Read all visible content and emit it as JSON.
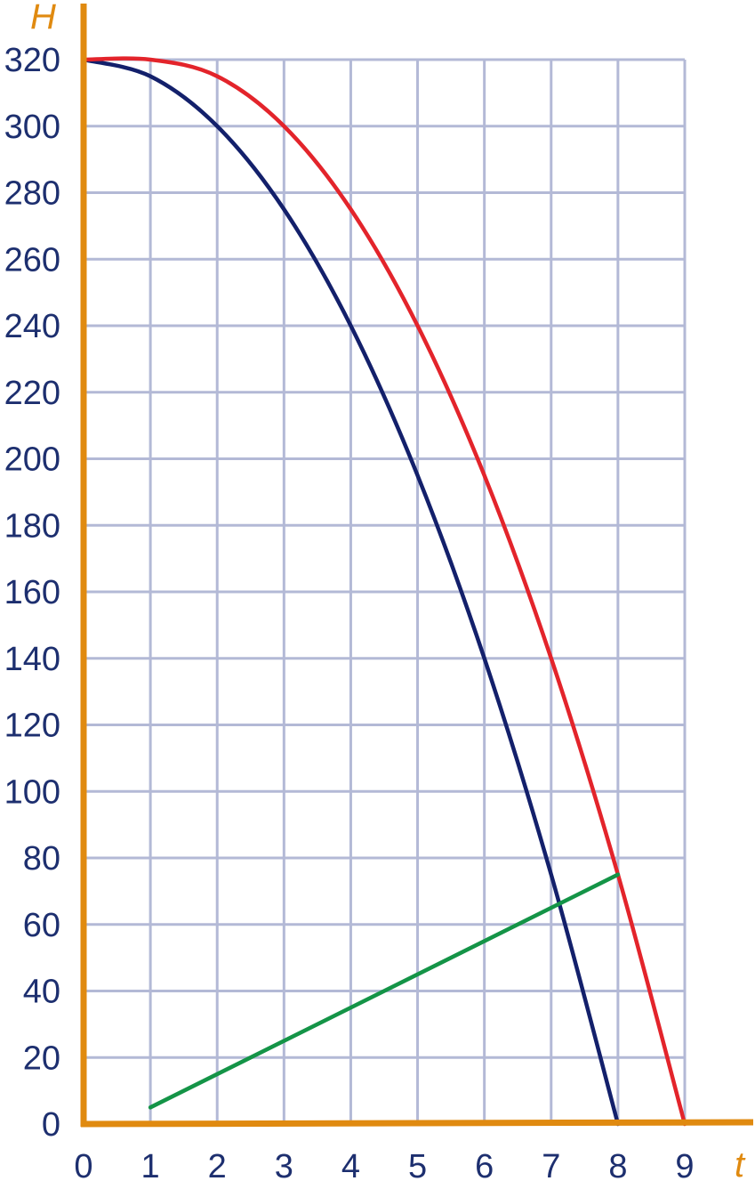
{
  "chart_data": {
    "type": "line",
    "xlabel": "t",
    "ylabel": "H",
    "xlim": [
      0,
      9
    ],
    "ylim": [
      0,
      320
    ],
    "x_ticks": [
      0,
      1,
      2,
      3,
      4,
      5,
      6,
      7,
      8,
      9
    ],
    "y_ticks": [
      0,
      20,
      40,
      60,
      80,
      100,
      120,
      140,
      160,
      180,
      200,
      220,
      240,
      260,
      280,
      300,
      320
    ],
    "grid": true,
    "colors": {
      "axis": "#e08a10",
      "grid": "#b3b9d6",
      "tick_text": "#1d2f6f"
    },
    "series": [
      {
        "color": "#13206b",
        "x": [
          0,
          1,
          2,
          3,
          4,
          5,
          6,
          7,
          8
        ],
        "values": [
          320,
          315,
          300,
          275,
          240,
          195,
          140,
          75,
          0
        ]
      },
      {
        "color": "#e3242b",
        "x": [
          0,
          1,
          2,
          3,
          4,
          5,
          6,
          7,
          8,
          9
        ],
        "values": [
          320,
          320,
          315,
          300,
          275,
          240,
          195,
          140,
          75,
          0
        ]
      },
      {
        "color": "#149447",
        "x": [
          1,
          8
        ],
        "values": [
          5,
          75
        ]
      }
    ]
  }
}
